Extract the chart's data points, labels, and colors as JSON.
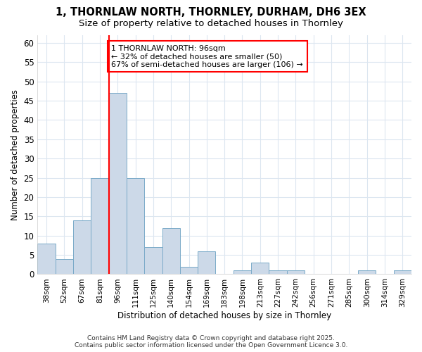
{
  "title1": "1, THORNLAW NORTH, THORNLEY, DURHAM, DH6 3EX",
  "title2": "Size of property relative to detached houses in Thornley",
  "xlabel": "Distribution of detached houses by size in Thornley",
  "ylabel": "Number of detached properties",
  "footer": "Contains HM Land Registry data © Crown copyright and database right 2025.\nContains public sector information licensed under the Open Government Licence 3.0.",
  "bin_labels": [
    "38sqm",
    "52sqm",
    "67sqm",
    "81sqm",
    "96sqm",
    "111sqm",
    "125sqm",
    "140sqm",
    "154sqm",
    "169sqm",
    "183sqm",
    "198sqm",
    "213sqm",
    "227sqm",
    "242sqm",
    "256sqm",
    "271sqm",
    "285sqm",
    "300sqm",
    "314sqm",
    "329sqm"
  ],
  "bar_values": [
    8,
    4,
    14,
    25,
    47,
    25,
    7,
    12,
    2,
    6,
    0,
    1,
    3,
    1,
    1,
    0,
    0,
    0,
    1,
    0,
    1
  ],
  "bar_color": "#ccd9e8",
  "bar_edge_color": "#7aaac8",
  "red_line_bin_index": 4,
  "annotation_text": "1 THORNLAW NORTH: 96sqm\n← 32% of detached houses are smaller (50)\n67% of semi-detached houses are larger (106) →",
  "ylim": [
    0,
    62
  ],
  "yticks": [
    0,
    5,
    10,
    15,
    20,
    25,
    30,
    35,
    40,
    45,
    50,
    55,
    60
  ],
  "bg_color": "#ffffff",
  "plot_bg_color": "#ffffff",
  "grid_color": "#dce6f0"
}
